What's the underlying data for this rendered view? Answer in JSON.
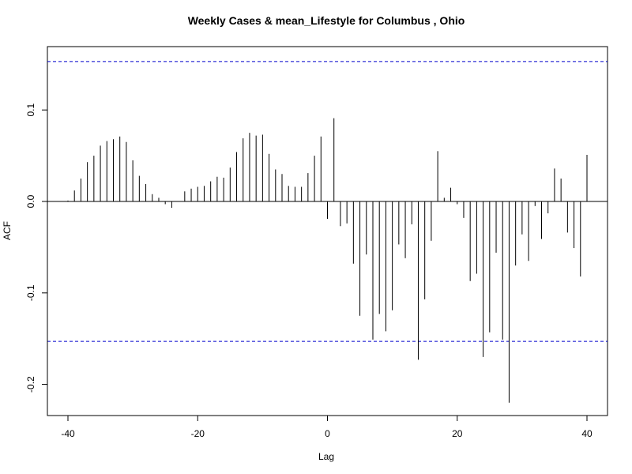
{
  "chart_data": {
    "type": "bar",
    "subtype": "acf-ccf-spikes",
    "title": "Weekly Cases & mean_Lifestyle for Columbus , Ohio",
    "xlabel": "Lag",
    "ylabel": "ACF",
    "xlim": [
      -40,
      40
    ],
    "ylim": [
      -0.235,
      0.17
    ],
    "x_ticks": [
      -40,
      -20,
      0,
      20,
      40
    ],
    "x_tick_labels": [
      "-40",
      "-20",
      "0",
      "20",
      "40"
    ],
    "y_ticks": [
      -0.2,
      -0.1,
      0.0,
      0.1
    ],
    "y_tick_labels": [
      "-0.2",
      "-0.1",
      "0.0",
      "0.1"
    ],
    "confidence_bound": 0.153,
    "colors": {
      "spikes": "#000000",
      "bounds": "#0000cc",
      "zero": "#000000"
    },
    "lags": [
      -40,
      -39,
      -38,
      -37,
      -36,
      -35,
      -34,
      -33,
      -32,
      -31,
      -30,
      -29,
      -28,
      -27,
      -26,
      -25,
      -24,
      -23,
      -22,
      -21,
      -20,
      -19,
      -18,
      -17,
      -16,
      -15,
      -14,
      -13,
      -12,
      -11,
      -10,
      -9,
      -8,
      -7,
      -6,
      -5,
      -4,
      -3,
      -2,
      -1,
      0,
      1,
      2,
      3,
      4,
      5,
      6,
      7,
      8,
      9,
      10,
      11,
      12,
      13,
      14,
      15,
      16,
      17,
      18,
      19,
      20,
      21,
      22,
      23,
      24,
      25,
      26,
      27,
      28,
      29,
      30,
      31,
      32,
      33,
      34,
      35,
      36,
      37,
      38,
      39,
      40
    ],
    "values": [
      0.001,
      0.012,
      0.025,
      0.043,
      0.05,
      0.061,
      0.066,
      0.068,
      0.071,
      0.065,
      0.045,
      0.028,
      0.019,
      0.008,
      0.004,
      -0.003,
      -0.007,
      0.0,
      0.011,
      0.014,
      0.016,
      0.017,
      0.022,
      0.027,
      0.026,
      0.037,
      0.054,
      0.069,
      0.075,
      0.072,
      0.073,
      0.052,
      0.035,
      0.03,
      0.017,
      0.016,
      0.016,
      0.031,
      0.05,
      0.071,
      -0.019,
      0.091,
      -0.027,
      -0.024,
      -0.068,
      -0.125,
      -0.058,
      -0.151,
      -0.123,
      -0.142,
      -0.119,
      -0.047,
      -0.062,
      -0.025,
      -0.173,
      -0.107,
      -0.043,
      0.055,
      0.004,
      0.015,
      -0.003,
      -0.018,
      -0.087,
      -0.079,
      -0.17,
      -0.143,
      -0.056,
      -0.151,
      -0.22,
      -0.07,
      -0.036,
      -0.065,
      -0.005,
      -0.041,
      -0.013,
      0.036,
      0.025,
      -0.034,
      -0.051,
      -0.082,
      0.051
    ]
  }
}
